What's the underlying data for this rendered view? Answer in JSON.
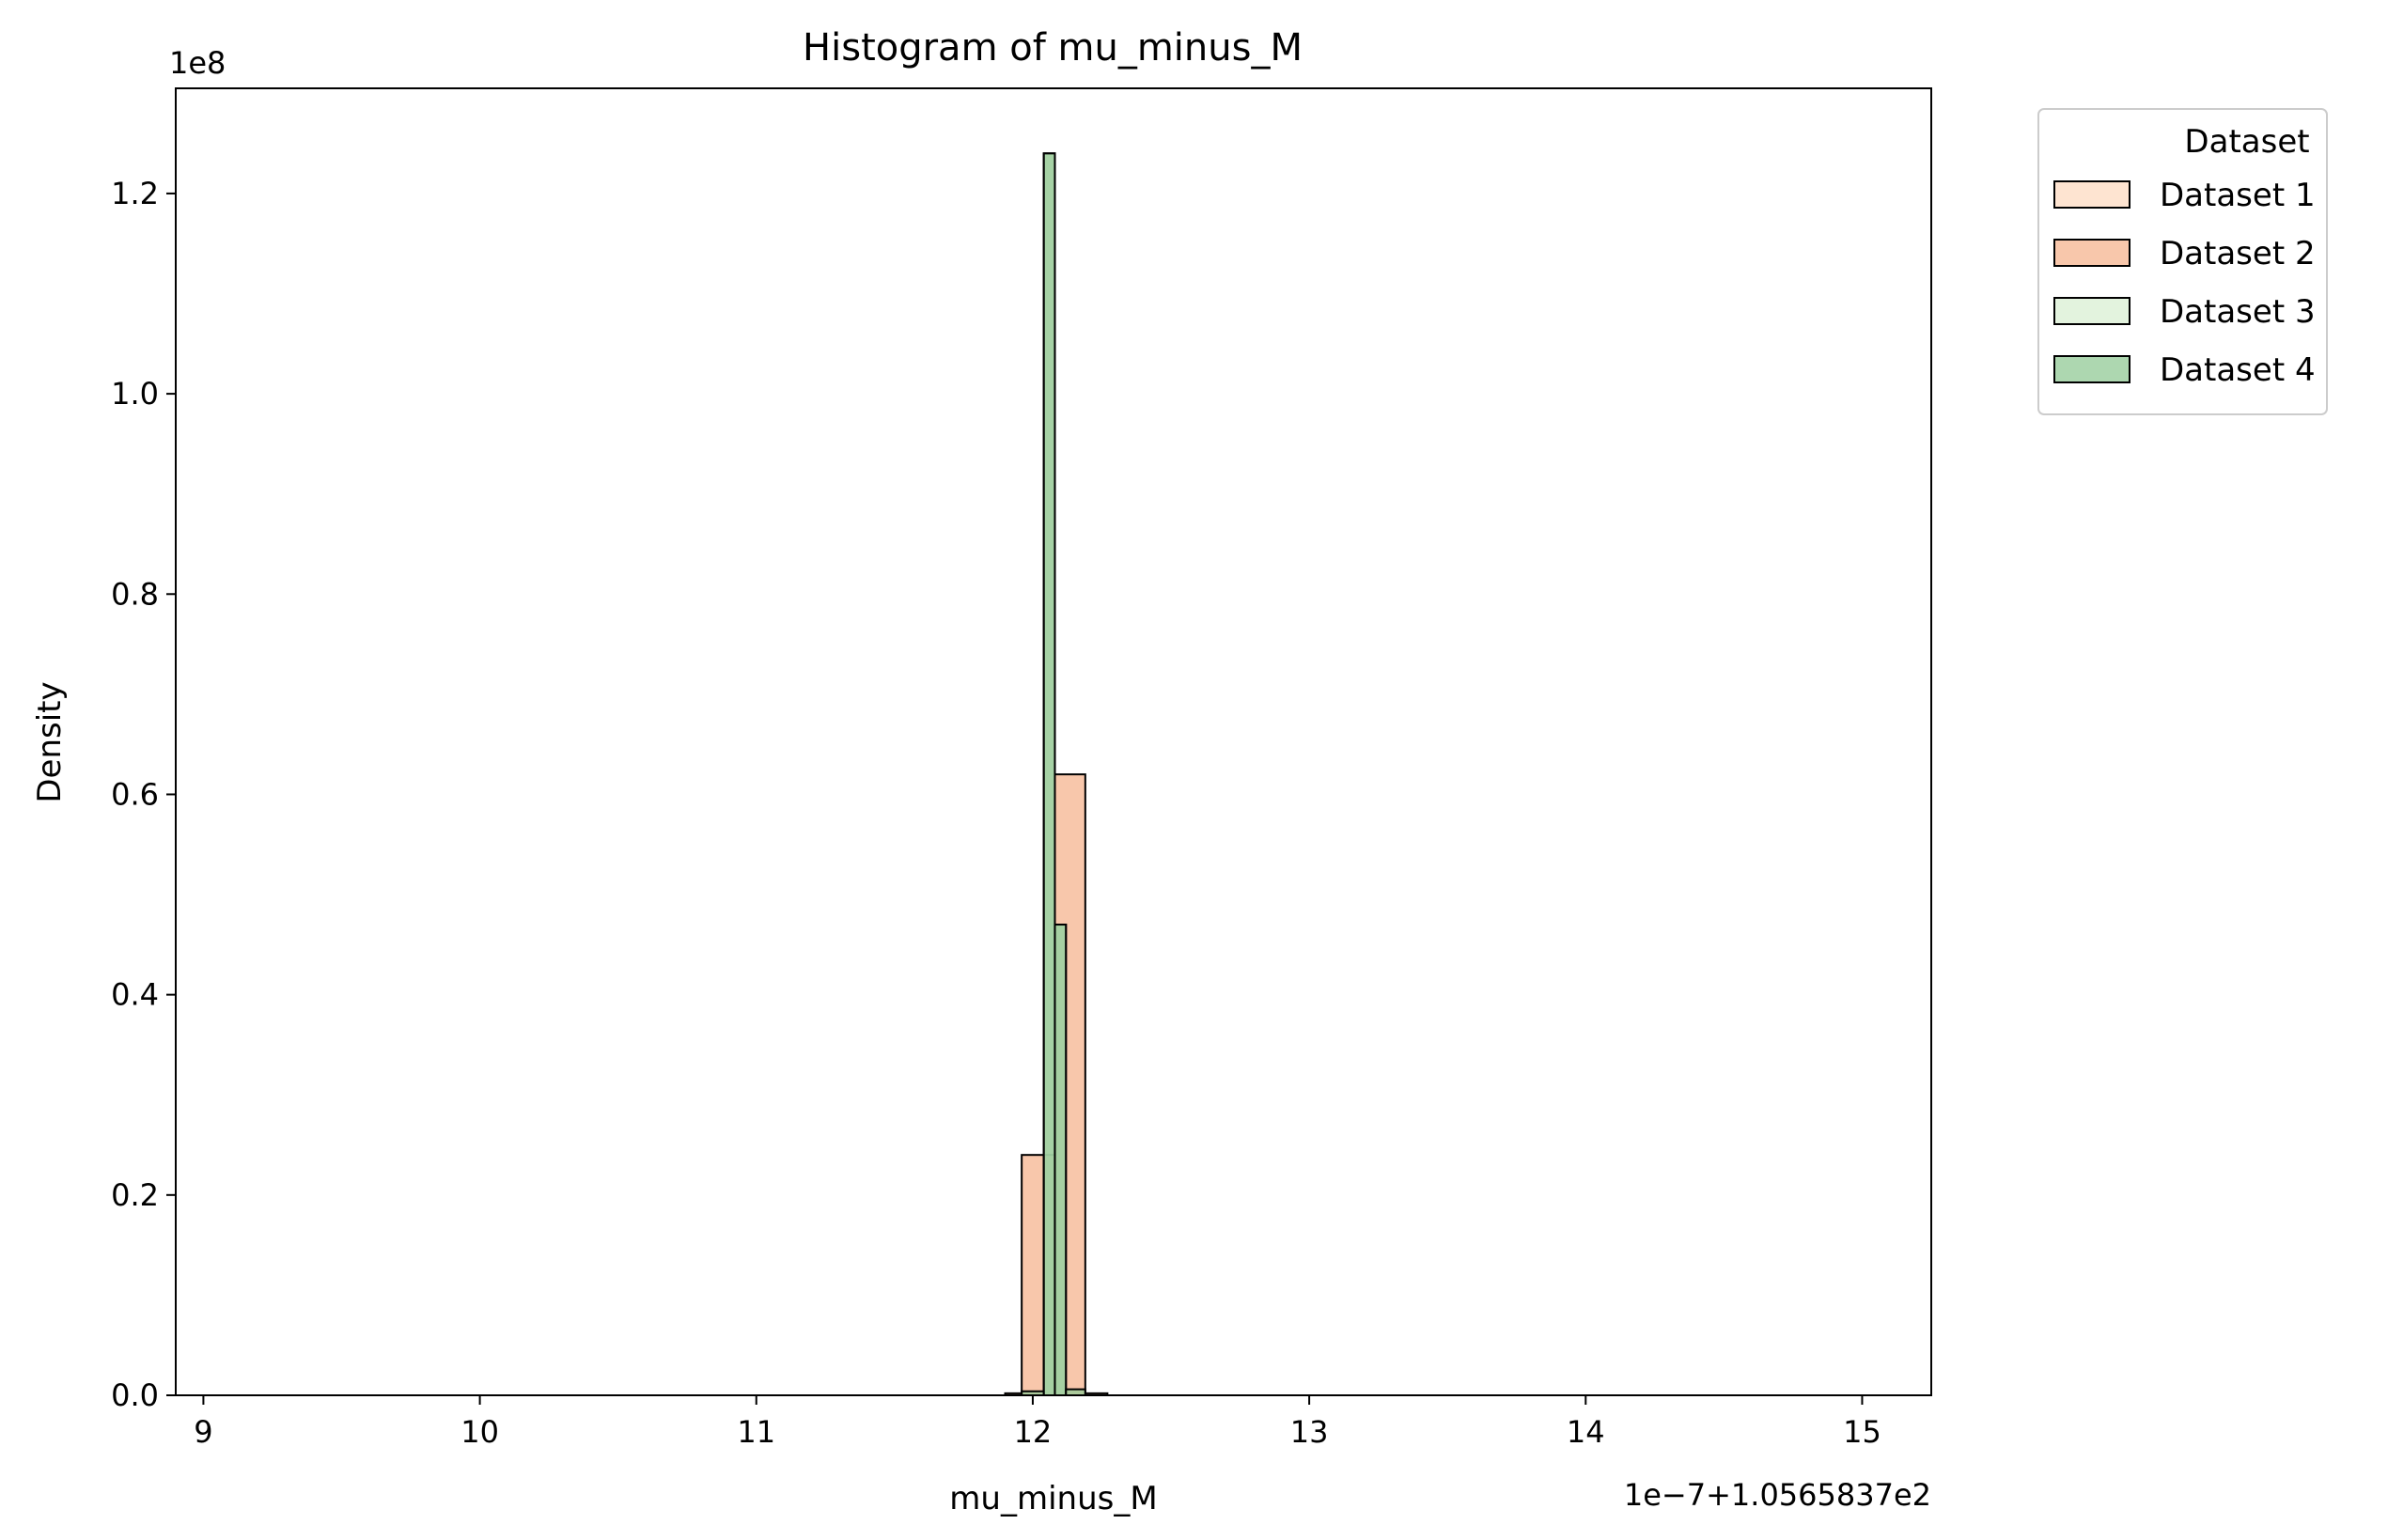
{
  "chart_data": {
    "type": "bar",
    "title": "Histogram of mu_minus_M",
    "xlabel": "mu_minus_M",
    "ylabel": "Density",
    "x_offset_text": "1e−7+1.0565837e2",
    "y_offset_text": "1e8",
    "xlim": [
      8.9,
      15.25
    ],
    "ylim": [
      0,
      1.305
    ],
    "x_ticks": [
      9,
      10,
      11,
      12,
      13,
      14,
      15
    ],
    "x_tick_labels": [
      "9",
      "10",
      "11",
      "12",
      "13",
      "14",
      "15"
    ],
    "y_ticks": [
      0.0,
      0.2,
      0.4,
      0.6,
      0.8,
      1.0,
      1.2
    ],
    "y_tick_labels": [
      "0.0",
      "0.2",
      "0.4",
      "0.6",
      "0.8",
      "1.0",
      "1.2"
    ],
    "grid": false,
    "legend": {
      "title": "Dataset",
      "placement": "outside-upper-right"
    },
    "series": [
      {
        "name": "Dataset 1",
        "color": "#fddbc1",
        "edge": "#000000",
        "bins": [
          {
            "x0": 12.04,
            "x1": 12.08,
            "y": 1.24
          },
          {
            "x0": 12.08,
            "x1": 12.12,
            "y": 0.47
          }
        ]
      },
      {
        "name": "Dataset 2",
        "color": "#f5b48f",
        "edge": "#000000",
        "bins": [
          {
            "x0": 11.9,
            "x1": 11.96,
            "y": 0.002
          },
          {
            "x0": 11.96,
            "x1": 12.04,
            "y": 0.24
          },
          {
            "x0": 12.04,
            "x1": 12.08,
            "y": 0.24
          },
          {
            "x0": 12.08,
            "x1": 12.19,
            "y": 0.62
          },
          {
            "x0": 12.19,
            "x1": 12.27,
            "y": 0.002
          }
        ]
      },
      {
        "name": "Dataset 3",
        "color": "#d9efd3",
        "edge": "#000000",
        "bins": [
          {
            "x0": 12.04,
            "x1": 12.08,
            "y": 1.24
          },
          {
            "x0": 12.08,
            "x1": 12.12,
            "y": 0.47
          }
        ]
      },
      {
        "name": "Dataset 4",
        "color": "#92c995",
        "edge": "#000000",
        "bins": [
          {
            "x0": 11.96,
            "x1": 12.04,
            "y": 0.004
          },
          {
            "x0": 12.04,
            "x1": 12.08,
            "y": 1.24
          },
          {
            "x0": 12.08,
            "x1": 12.12,
            "y": 0.47
          },
          {
            "x0": 12.12,
            "x1": 12.19,
            "y": 0.006
          }
        ]
      }
    ]
  }
}
